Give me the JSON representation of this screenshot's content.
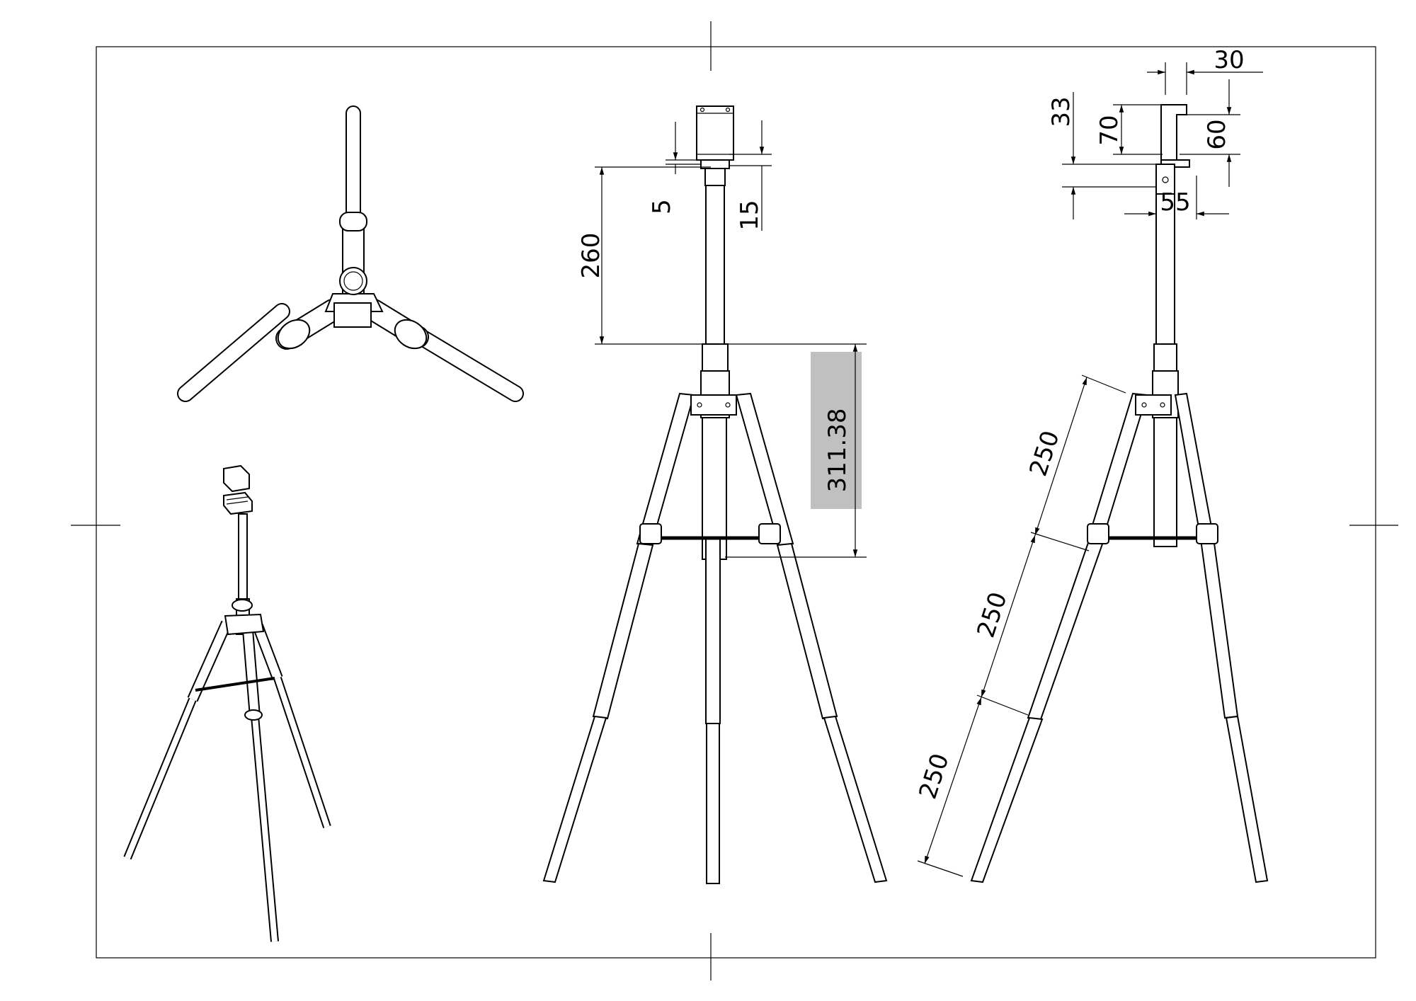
{
  "sheet": {
    "views": [
      "top-view",
      "isometric-view",
      "front-view",
      "side-view"
    ]
  },
  "dimensions": {
    "front": {
      "d_260": "260",
      "d_5": "5",
      "d_15": "15",
      "d_311": "311.38"
    },
    "side": {
      "d_30": "30",
      "d_33": "33",
      "d_70": "70",
      "d_60": "60",
      "d_55": "55",
      "d_250_upper": "250",
      "d_250_middle": "250",
      "d_250_lower": "250"
    }
  },
  "colors": {
    "line": "#000000",
    "background": "#ffffff",
    "highlight": "#c0c0c0"
  }
}
